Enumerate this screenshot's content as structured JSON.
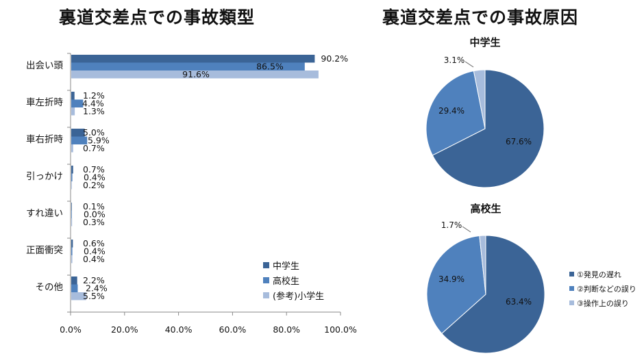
{
  "chart_data": [
    {
      "type": "bar",
      "orientation": "horizontal",
      "title": "裏道交差点での事故類型",
      "categories": [
        "出会い頭",
        "車左折時",
        "車右折時",
        "引っかけ",
        "すれ違い",
        "正面衝突",
        "その他"
      ],
      "series": [
        {
          "name": "中学生",
          "color": "#3b6496",
          "values": [
            90.2,
            1.2,
            5.0,
            0.7,
            0.1,
            0.6,
            2.2
          ]
        },
        {
          "name": "高校生",
          "color": "#4f81bd",
          "values": [
            86.5,
            4.4,
            5.9,
            0.4,
            0.0,
            0.4,
            2.4
          ]
        },
        {
          "name": "(参考)小学生",
          "color": "#a7bcdc",
          "values": [
            91.6,
            1.3,
            0.7,
            0.2,
            0.3,
            0.4,
            5.5
          ]
        }
      ],
      "value_labels": [
        [
          "90.2%",
          "1.2%",
          "5.0%",
          "0.7%",
          "0.1%",
          "0.6%",
          "2.2%"
        ],
        [
          "86.5%",
          "4.4%",
          "5.9%",
          "0.4%",
          "0.0%",
          "0.4%",
          "2.4%"
        ],
        [
          "91.6%",
          "1.3%",
          "0.7%",
          "0.2%",
          "0.3%",
          "0.4%",
          "5.5%"
        ]
      ],
      "xlim": [
        0,
        100
      ],
      "xticks": [
        "0.0%",
        "20.0%",
        "40.0%",
        "60.0%",
        "80.0%",
        "100.0%"
      ],
      "legend": "bottom-right",
      "grid": false
    },
    {
      "type": "pie",
      "title": "裏道交差点での事故原因",
      "subtitle": "中学生",
      "labels": [
        "①発見の遅れ",
        "②判断などの誤り",
        "③操作上の誤り"
      ],
      "values": [
        67.6,
        29.4,
        3.1
      ],
      "value_labels": [
        "67.6%",
        "29.4%",
        "3.1%"
      ],
      "colors": [
        "#3b6496",
        "#4f81bd",
        "#a7bcdc"
      ]
    },
    {
      "type": "pie",
      "subtitle": "高校生",
      "labels": [
        "①発見の遅れ",
        "②判断などの誤り",
        "③操作上の誤り"
      ],
      "values": [
        63.4,
        34.9,
        1.7
      ],
      "value_labels": [
        "63.4%",
        "34.9%",
        "1.7%"
      ],
      "colors": [
        "#3b6496",
        "#4f81bd",
        "#a7bcdc"
      ],
      "legend": "right"
    }
  ]
}
